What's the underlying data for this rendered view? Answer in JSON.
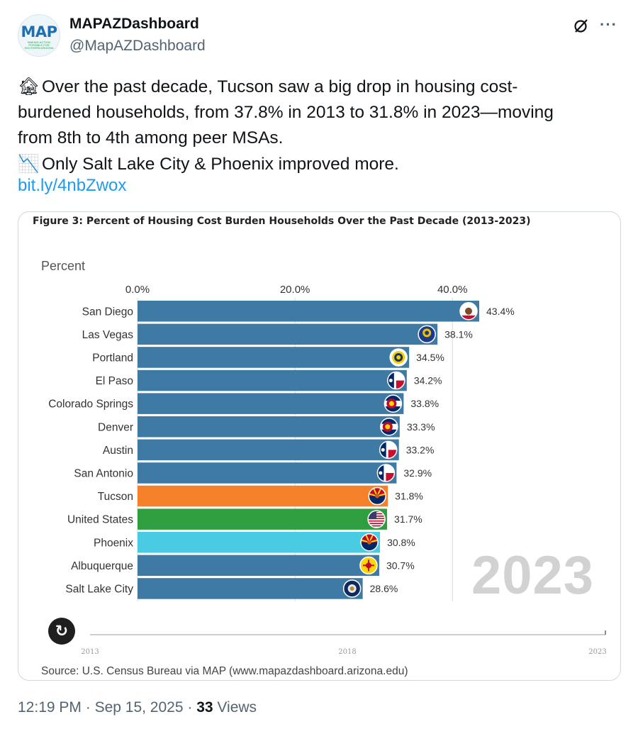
{
  "header": {
    "avatar_text": "MAP",
    "avatar_subtext": "MAKING ACTION POSSIBLE FOR SOUTHERN ARIZONA",
    "display_name": "MAPAZDashboard",
    "handle": "@MapAZDashboard",
    "more_label": "···"
  },
  "tweet": {
    "lines": [
      "Over the past decade, Tucson saw a big drop in housing cost-",
      "burdened households, from 37.8% in 2013 to 31.8% in 2023—moving",
      "from 8th to 4th among peer MSAs.",
      "Only Salt Lake City & Phoenix improved more."
    ],
    "emoji_house": "🏚",
    "emoji_chart": "📉",
    "link": "bit.ly/4nbZwox"
  },
  "figure": {
    "title": "Figure 3: Percent of Housing Cost Burden Households Over the Past Decade (2013-2023)",
    "axis_unit": "Percent",
    "year_watermark": "2023",
    "replay_icon": "↻",
    "source": "Source: U.S. Census Bureau via MAP (www.mapazdashboard.arizona.edu)"
  },
  "chart_data": {
    "type": "bar",
    "orientation": "horizontal",
    "title": "Figure 3: Percent of Housing Cost Burden Households Over the Past Decade (2013-2023)",
    "xlabel": "Percent",
    "xlim": [
      0,
      43.4
    ],
    "x_ticks": [
      0,
      20,
      40
    ],
    "x_tick_labels": [
      "0.0%",
      "20.0%",
      "40.0%"
    ],
    "categories": [
      "San Diego",
      "Las Vegas",
      "Portland",
      "El Paso",
      "Colorado Springs",
      "Denver",
      "Austin",
      "San Antonio",
      "Tucson",
      "United States",
      "Phoenix",
      "Albuquerque",
      "Salt Lake City"
    ],
    "values": [
      43.4,
      38.1,
      34.5,
      34.2,
      33.8,
      33.3,
      33.2,
      32.9,
      31.8,
      31.7,
      30.8,
      30.7,
      28.6
    ],
    "value_labels": [
      "43.4%",
      "38.1%",
      "34.5%",
      "34.2%",
      "33.8%",
      "33.3%",
      "33.2%",
      "32.9%",
      "31.8%",
      "31.7%",
      "30.8%",
      "30.7%",
      "28.6%"
    ],
    "colors": [
      "#3e7aa3",
      "#3e7aa3",
      "#3e7aa3",
      "#3e7aa3",
      "#3e7aa3",
      "#3e7aa3",
      "#3e7aa3",
      "#3e7aa3",
      "#f5822a",
      "#2e9e3e",
      "#49cbe4",
      "#3e7aa3",
      "#3e7aa3"
    ],
    "badges": [
      "ca-flag-icon",
      "nv-flag-icon",
      "or-flag-icon",
      "tx-flag-icon",
      "co-flag-icon",
      "co-flag-icon",
      "tx-flag-icon",
      "tx-flag-icon",
      "az-flag-icon",
      "us-flag-icon",
      "az-flag-icon",
      "nm-flag-icon",
      "ut-flag-icon"
    ],
    "timeline": {
      "start_label": "2013",
      "mid_label": "2018",
      "end_label": "2023",
      "current_year": 2023
    }
  },
  "footer": {
    "time": "12:19 PM",
    "separator": "·",
    "date": "Sep 15, 2025",
    "views_count": "33",
    "views_label": "Views"
  }
}
